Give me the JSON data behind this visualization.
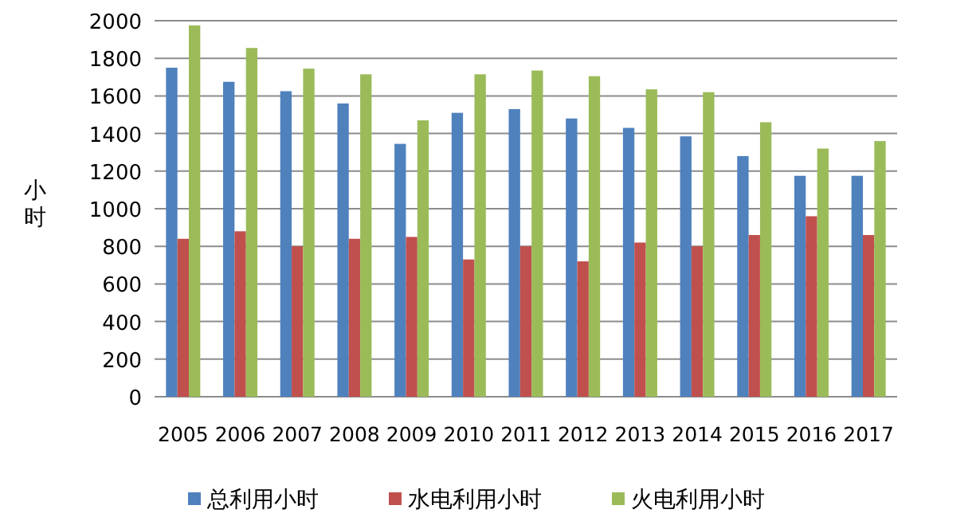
{
  "chart_data": {
    "type": "bar",
    "ylabel": "小时",
    "categories": [
      "2005",
      "2006",
      "2007",
      "2008",
      "2009",
      "2010",
      "2011",
      "2012",
      "2013",
      "2014",
      "2015",
      "2016",
      "2017"
    ],
    "series": [
      {
        "name": "总利用小时",
        "color": "#4f81bd",
        "values": [
          1750,
          1675,
          1625,
          1560,
          1345,
          1510,
          1530,
          1480,
          1430,
          1385,
          1280,
          1175,
          1175
        ]
      },
      {
        "name": "水电利用小时",
        "color": "#c0504d",
        "values": [
          840,
          880,
          800,
          840,
          850,
          730,
          800,
          720,
          820,
          800,
          860,
          960,
          860
        ]
      },
      {
        "name": "火电利用小时",
        "color": "#9bbb59",
        "values": [
          1975,
          1855,
          1745,
          1715,
          1470,
          1715,
          1735,
          1705,
          1635,
          1620,
          1460,
          1320,
          1360
        ]
      }
    ],
    "ylim": [
      0,
      2000
    ],
    "yticks": [
      0,
      200,
      400,
      600,
      800,
      1000,
      1200,
      1400,
      1600,
      1800,
      2000
    ],
    "grid": "y",
    "legend": "bottom"
  }
}
